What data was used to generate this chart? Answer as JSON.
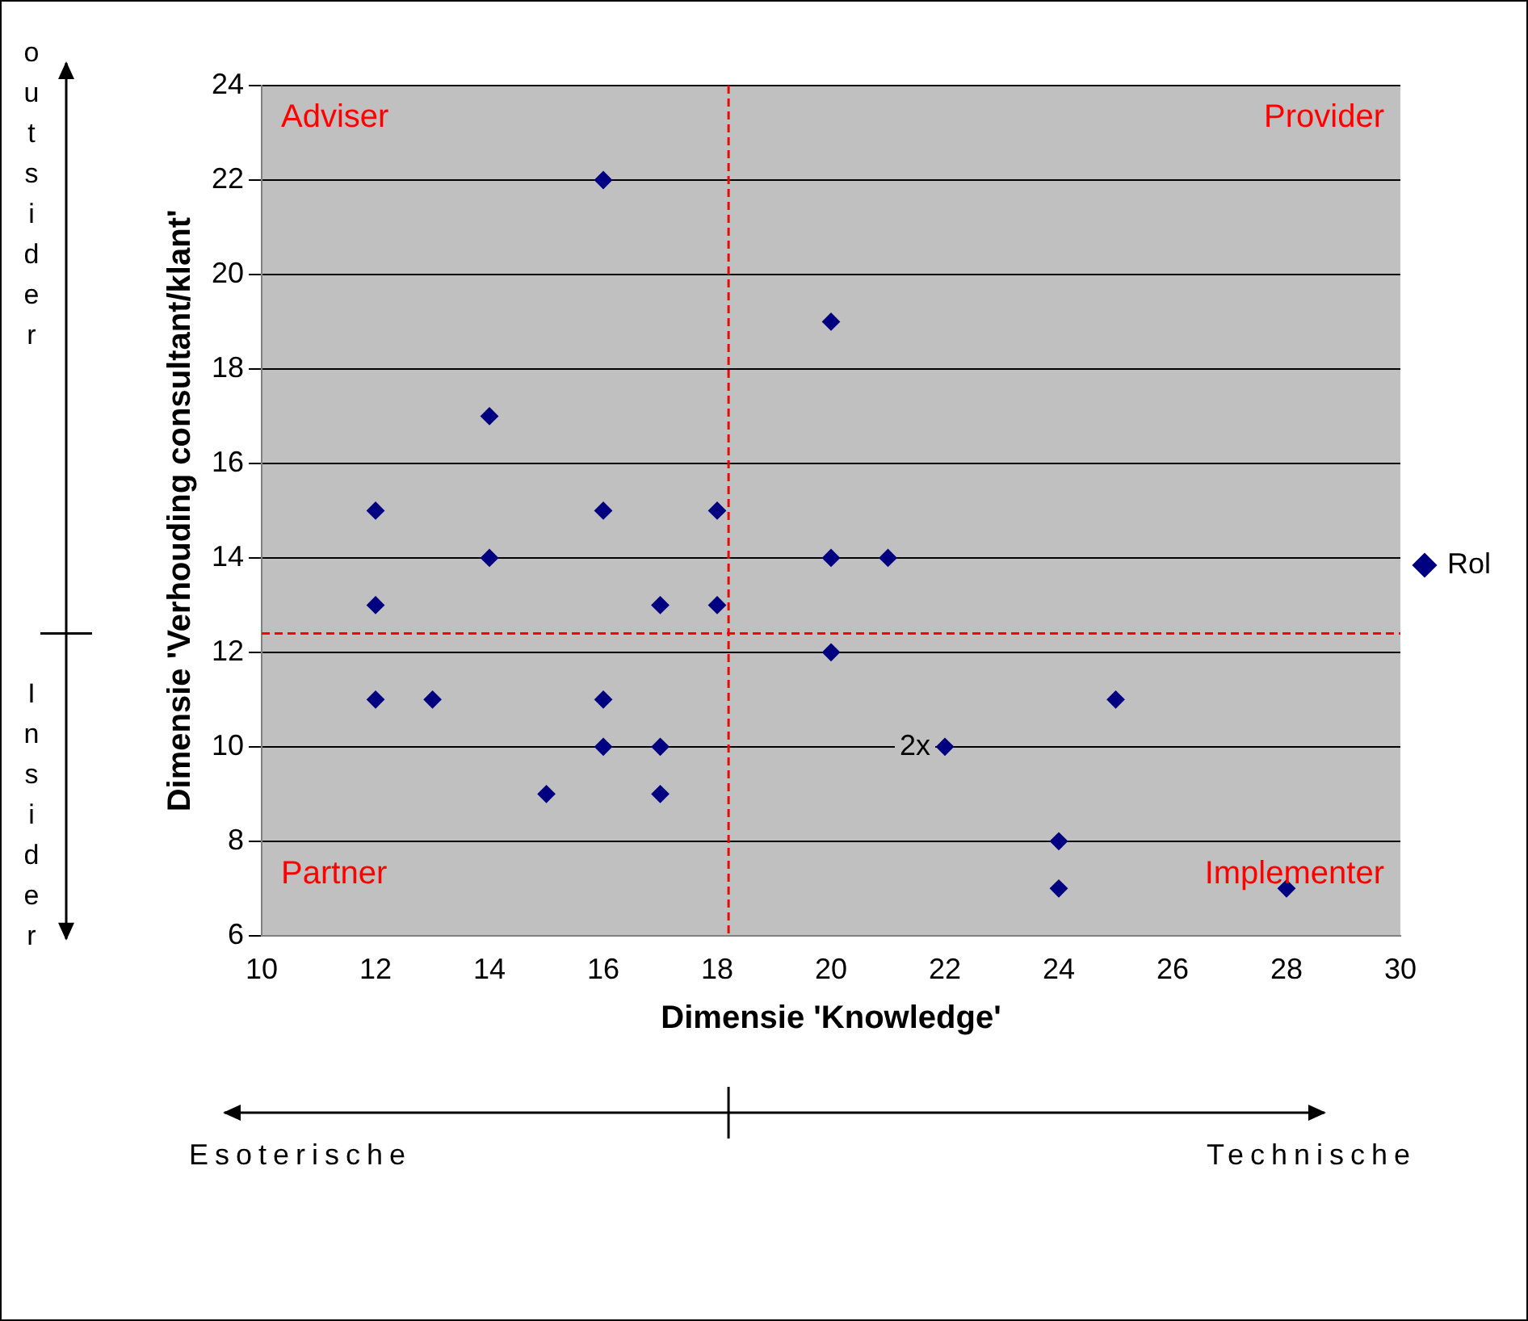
{
  "chart_data": {
    "type": "scatter",
    "xlabel": "Dimensie 'Knowledge'",
    "ylabel": "Dimensie 'Verhouding consultant/klant'",
    "x": [
      16,
      20,
      14,
      12,
      16,
      18,
      14,
      20,
      21,
      12,
      17,
      18,
      20,
      12,
      13,
      16,
      25,
      16,
      17,
      22,
      15,
      17,
      24,
      24,
      28
    ],
    "series": [
      {
        "name": "Rol",
        "color": "#000080",
        "values": [
          22,
          19,
          17,
          15,
          15,
          15,
          14,
          14,
          14,
          13,
          13,
          13,
          12,
          11,
          11,
          11,
          11,
          10,
          10,
          10,
          9,
          9,
          8,
          7,
          7
        ]
      }
    ],
    "xlim": [
      10,
      30
    ],
    "xticks": [
      10,
      12,
      14,
      16,
      18,
      20,
      22,
      24,
      26,
      28,
      30
    ],
    "ylim": [
      6,
      24
    ],
    "yticks": [
      6,
      8,
      10,
      12,
      14,
      16,
      18,
      20,
      22,
      24
    ],
    "grid": "y",
    "legend": "right",
    "marker": "diamond",
    "ref_lines": [
      {
        "axis": "x",
        "value": 18.2,
        "color": "#ff0000",
        "line_style": "dashed"
      },
      {
        "axis": "y",
        "value": 12.4,
        "color": "#ff0000",
        "line_style": "dashed"
      }
    ],
    "annotations": [
      "Adviser",
      "Provider",
      "Partner",
      "Implementer",
      {
        "text": "2x",
        "x": 22,
        "y": 10
      },
      "outsider",
      "Insider",
      "Esoterische",
      "Technische"
    ]
  }
}
